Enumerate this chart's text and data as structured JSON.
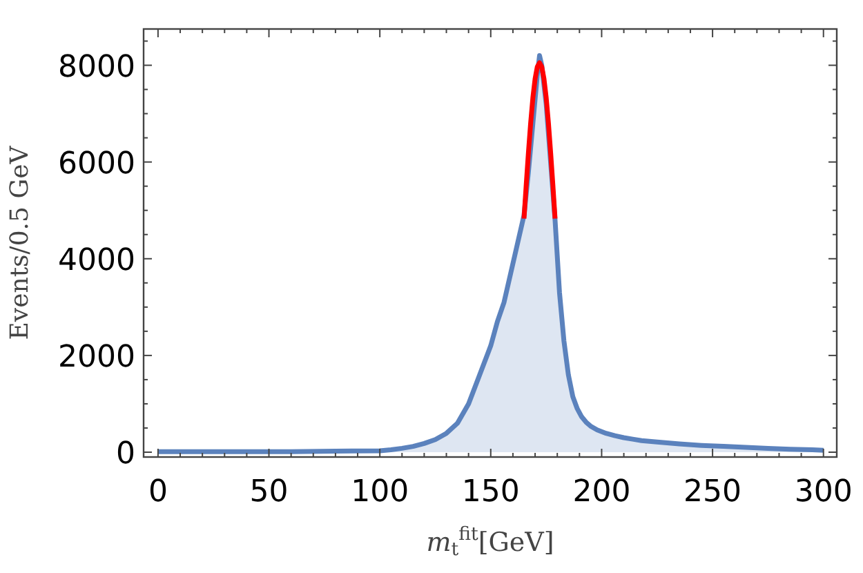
{
  "chart_data": {
    "type": "area",
    "xlabel": "m$_{t}$$^{fit}$[GeV]",
    "ylabel": "Events/0.5 GeV",
    "xlim": [
      -6.5,
      306
    ],
    "ylim": [
      -100,
      8750
    ],
    "xticks": [
      0,
      {
        "value": 10,
        "label": null
      },
      {
        "value": 20,
        "label": null
      },
      {
        "value": 30,
        "label": null
      },
      {
        "value": 40,
        "label": null
      },
      50,
      {
        "value": 60,
        "label": null
      },
      {
        "value": 70,
        "label": null
      },
      {
        "value": 80,
        "label": null
      },
      {
        "value": 90,
        "label": null
      },
      100,
      {
        "value": 110,
        "label": null
      },
      {
        "value": 120,
        "label": null
      },
      {
        "value": 130,
        "label": null
      },
      {
        "value": 140,
        "label": null
      },
      150,
      {
        "value": 160,
        "label": null
      },
      {
        "value": 170,
        "label": null
      },
      {
        "value": 180,
        "label": null
      },
      {
        "value": 190,
        "label": null
      },
      200,
      {
        "value": 210,
        "label": null
      },
      {
        "value": 220,
        "label": null
      },
      {
        "value": 230,
        "label": null
      },
      {
        "value": 240,
        "label": null
      },
      250,
      {
        "value": 260,
        "label": null
      },
      {
        "value": 270,
        "label": null
      },
      {
        "value": 280,
        "label": null
      },
      {
        "value": 290,
        "label": null
      },
      300
    ],
    "yticks": [
      0,
      {
        "value": 500,
        "label": null
      },
      {
        "value": 1000,
        "label": null
      },
      {
        "value": 1500,
        "label": null
      },
      2000,
      {
        "value": 2500,
        "label": null
      },
      {
        "value": 3000,
        "label": null
      },
      {
        "value": 3500,
        "label": null
      },
      4000,
      {
        "value": 4500,
        "label": null
      },
      {
        "value": 5000,
        "label": null
      },
      {
        "value": 5500,
        "label": null
      },
      6000,
      {
        "value": 6500,
        "label": null
      },
      {
        "value": 7000,
        "label": null
      },
      {
        "value": 7500,
        "label": null
      },
      8000,
      {
        "value": 8500,
        "label": null
      }
    ],
    "grid": false,
    "series": [
      {
        "color": "#5b82bd",
        "x": [
          0,
          20,
          40,
          60,
          80,
          100,
          105,
          110,
          115,
          120,
          125,
          130,
          135,
          140,
          145,
          150,
          153,
          156,
          159,
          162,
          165,
          167,
          169,
          171,
          172,
          173,
          175,
          177,
          179,
          181,
          183,
          185,
          187,
          189,
          191,
          193,
          195,
          198,
          202,
          206,
          210,
          214,
          218,
          225,
          235,
          245,
          255,
          265,
          275,
          285,
          295,
          300
        ],
        "values": [
          10,
          10,
          10,
          10,
          20,
          30,
          50,
          80,
          120,
          180,
          260,
          390,
          600,
          1000,
          1600,
          2200,
          2700,
          3100,
          3700,
          4300,
          4900,
          5800,
          6800,
          7800,
          8200,
          8000,
          7200,
          6000,
          4800,
          3300,
          2300,
          1600,
          1150,
          900,
          730,
          620,
          540,
          460,
          390,
          340,
          300,
          270,
          240,
          210,
          170,
          140,
          120,
          100,
          80,
          60,
          50,
          40
        ]
      },
      {
        "type": "line",
        "color": "#ff0000",
        "x": [
          165,
          166,
          167,
          168,
          169,
          170,
          171,
          172,
          173,
          174,
          175,
          176,
          177,
          178,
          179
        ],
        "values": [
          4830,
          5530,
          6200,
          6810,
          7330,
          7720,
          7970,
          8050,
          7970,
          7720,
          7330,
          6810,
          6200,
          5530,
          4830
        ]
      }
    ]
  }
}
